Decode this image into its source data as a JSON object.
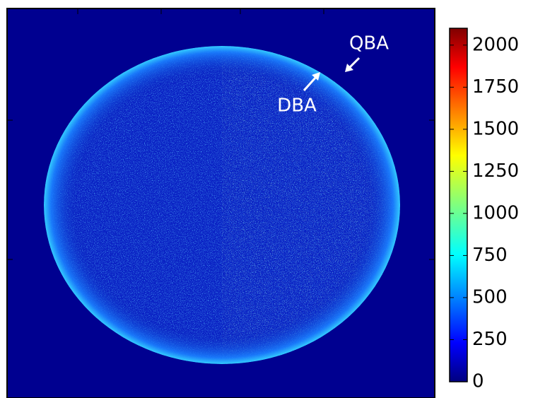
{
  "chart_data": {
    "type": "heatmap",
    "colormap": "jet",
    "clim": [
      0,
      2100
    ],
    "cticks": [
      0,
      250,
      500,
      750,
      1000,
      1250,
      1500,
      1750,
      2000
    ],
    "annotations": [
      {
        "text": "QBA"
      },
      {
        "text": "DBA"
      }
    ]
  }
}
